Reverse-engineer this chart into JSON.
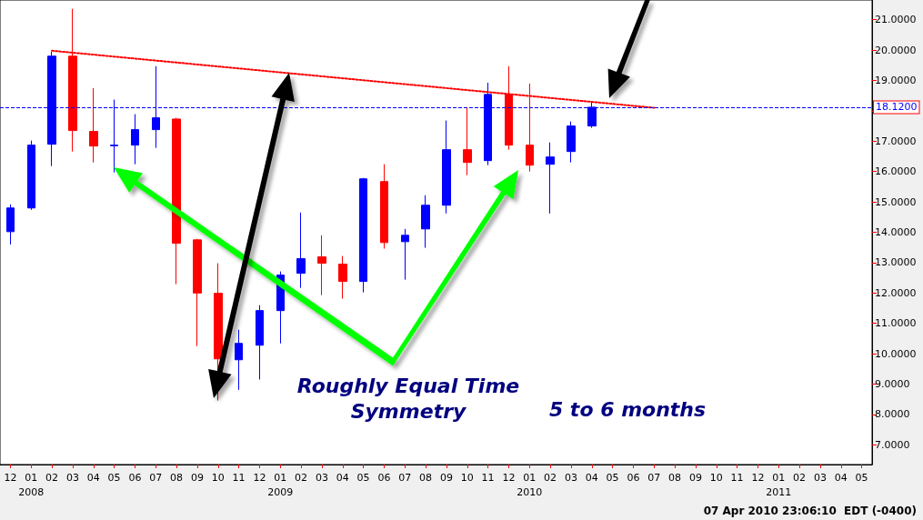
{
  "chart_data": {
    "type": "candlestick",
    "categories": [
      "12",
      "01\n2008",
      "02",
      "03",
      "04",
      "05",
      "06",
      "07",
      "08",
      "09",
      "10",
      "11",
      "12",
      "01\n2009",
      "02",
      "03",
      "04",
      "05",
      "06",
      "07",
      "08",
      "09",
      "10",
      "11",
      "12",
      "01\n2010",
      "02",
      "03",
      "04",
      "05",
      "06",
      "07",
      "08",
      "09",
      "10",
      "11",
      "12",
      "01\n2011",
      "02",
      "03",
      "04",
      "05"
    ],
    "series": [
      {
        "ohlc": [
          [
            14.02,
            14.92,
            13.6,
            14.8
          ],
          [
            14.8,
            17.02,
            14.74,
            16.87
          ],
          [
            16.9,
            19.95,
            16.18,
            19.8
          ],
          [
            19.8,
            21.36,
            16.66,
            17.35
          ],
          [
            17.32,
            18.75,
            16.3,
            16.84
          ],
          [
            16.85,
            18.37,
            15.97,
            16.87
          ],
          [
            16.87,
            17.89,
            16.24,
            17.38
          ],
          [
            17.38,
            19.47,
            16.78,
            17.77
          ],
          [
            17.73,
            17.77,
            12.29,
            13.64
          ],
          [
            13.75,
            13.78,
            10.25,
            12.0
          ],
          [
            11.99,
            12.98,
            8.46,
            9.83
          ],
          [
            9.8,
            10.79,
            8.81,
            10.34
          ],
          [
            10.28,
            11.6,
            9.15,
            11.42
          ],
          [
            11.42,
            12.71,
            10.34,
            12.59
          ],
          [
            12.65,
            14.65,
            12.17,
            13.13
          ],
          [
            13.19,
            13.9,
            11.93,
            12.98
          ],
          [
            12.95,
            13.22,
            11.81,
            12.38
          ],
          [
            12.38,
            15.79,
            12.02,
            15.76
          ],
          [
            15.67,
            16.24,
            13.46,
            13.66
          ],
          [
            13.69,
            14.11,
            12.44,
            13.9
          ],
          [
            14.11,
            15.22,
            13.49,
            14.89
          ],
          [
            14.89,
            17.68,
            14.62,
            16.72
          ],
          [
            16.72,
            18.1,
            15.88,
            16.3
          ],
          [
            16.36,
            18.93,
            16.21,
            18.54
          ],
          [
            18.54,
            19.47,
            16.72,
            16.87
          ],
          [
            16.87,
            18.9,
            16.0,
            16.21
          ],
          [
            16.24,
            16.96,
            14.62,
            16.48
          ],
          [
            16.66,
            17.65,
            16.3,
            17.5
          ],
          [
            17.5,
            18.28,
            17.44,
            18.12
          ],
          null,
          null,
          null,
          null,
          null,
          null,
          null,
          null,
          null,
          null,
          null,
          null,
          null
        ],
        "colors": [
          "#0000ff",
          "#0000ff",
          "#0000ff",
          "#ff0000",
          "#ff0000",
          "#0000ff",
          "#0000ff",
          "#0000ff",
          "#ff0000",
          "#ff0000",
          "#ff0000",
          "#0000ff",
          "#0000ff",
          "#0000ff",
          "#0000ff",
          "#ff0000",
          "#ff0000",
          "#0000ff",
          "#ff0000",
          "#0000ff",
          "#0000ff",
          "#0000ff",
          "#ff0000",
          "#0000ff",
          "#ff0000",
          "#ff0000",
          "#0000ff",
          "#0000ff",
          "#0000ff",
          null,
          null,
          null,
          null,
          null,
          null,
          null,
          null,
          null,
          null,
          null,
          null,
          null
        ]
      },
      {
        "type": "line",
        "color": "#ff0000",
        "line_style": "dotted",
        "marker": "none",
        "values": [
          null,
          null,
          19.98,
          null,
          null,
          null,
          null,
          null,
          null,
          null,
          null,
          null,
          null,
          null,
          null,
          null,
          null,
          null,
          null,
          null,
          null,
          null,
          null,
          null,
          null,
          null,
          null,
          null,
          null,
          null,
          null,
          18.1,
          null,
          null,
          null,
          null,
          null,
          null,
          null,
          null,
          null,
          null
        ]
      }
    ],
    "ylim": [
      6.35,
      21.65
    ],
    "yticks": [
      {
        "value": 7,
        "label": "7.0000"
      },
      {
        "value": 8,
        "label": "8.0000"
      },
      {
        "value": 9,
        "label": "9.0000"
      },
      {
        "value": 10,
        "label": "10.0000"
      },
      {
        "value": 11,
        "label": "11.0000"
      },
      {
        "value": 12,
        "label": "12.0000"
      },
      {
        "value": 13,
        "label": "13.0000"
      },
      {
        "value": 14,
        "label": "14.0000"
      },
      {
        "value": 15,
        "label": "15.0000"
      },
      {
        "value": 16,
        "label": "16.0000"
      },
      {
        "value": 17,
        "label": "17.0000"
      },
      {
        "value": 18,
        "label": null
      },
      {
        "value": 19,
        "label": "19.0000"
      },
      {
        "value": 20,
        "label": "20.0000"
      },
      {
        "value": 21,
        "label": "21.0000"
      }
    ],
    "ref_lines": [
      {
        "axis": "y",
        "value": 18.12,
        "label": "18.1200",
        "color": "#0000ff",
        "line_style": "dashed"
      }
    ],
    "grid": false,
    "annotations": [
      "Roughly Equal Time\nSymmetry",
      "5 to 6 months",
      "07 Apr 2010 23:06:10  EDT (-0400)"
    ]
  }
}
